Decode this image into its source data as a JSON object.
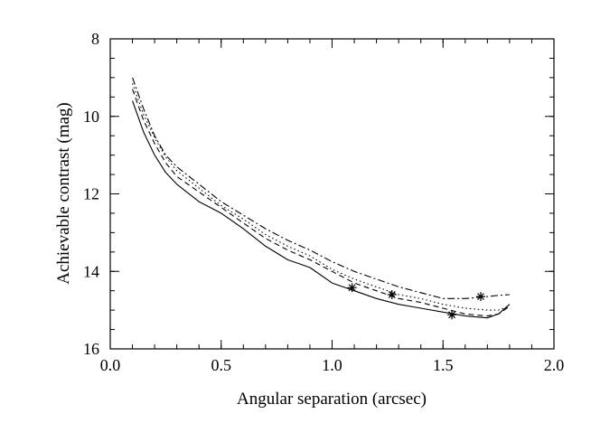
{
  "chart_data": {
    "type": "line",
    "xlabel": "Angular separation (arcsec)",
    "ylabel": "Achievable contrast (mag)",
    "xlim": [
      0.0,
      2.0
    ],
    "ylim": [
      16,
      8
    ],
    "y_inverted": true,
    "x_ticks": [
      0.0,
      0.5,
      1.0,
      1.5,
      2.0
    ],
    "x_tick_labels": [
      "0.0",
      "0.5",
      "1.0",
      "1.5",
      "2.0"
    ],
    "y_ticks": [
      8,
      10,
      12,
      14,
      16
    ],
    "y_tick_labels": [
      "8",
      "10",
      "12",
      "14",
      "16"
    ],
    "grid": false,
    "legend": "none",
    "series": [
      {
        "line_style": "solid",
        "x": [
          0.1,
          0.15,
          0.2,
          0.25,
          0.3,
          0.4,
          0.5,
          0.6,
          0.7,
          0.8,
          0.9,
          1.0,
          1.1,
          1.2,
          1.3,
          1.4,
          1.5,
          1.6,
          1.7,
          1.75,
          1.8
        ],
        "y": [
          9.6,
          10.4,
          11.0,
          11.45,
          11.75,
          12.2,
          12.5,
          12.9,
          13.35,
          13.7,
          13.9,
          14.3,
          14.5,
          14.7,
          14.85,
          14.95,
          15.05,
          15.15,
          15.2,
          15.1,
          14.85
        ],
        "markers": [
          [
            1.09,
            14.42
          ]
        ]
      },
      {
        "line_style": "dashed",
        "x": [
          0.1,
          0.15,
          0.2,
          0.25,
          0.3,
          0.4,
          0.5,
          0.6,
          0.7,
          0.8,
          0.9,
          1.0,
          1.1,
          1.2,
          1.3,
          1.4,
          1.5,
          1.6,
          1.7,
          1.75,
          1.8
        ],
        "y": [
          9.3,
          10.1,
          10.7,
          11.2,
          11.55,
          11.95,
          12.35,
          12.75,
          13.15,
          13.45,
          13.7,
          14.0,
          14.3,
          14.5,
          14.7,
          14.8,
          14.95,
          15.1,
          15.15,
          15.1,
          14.9
        ],
        "markers": [
          [
            1.54,
            15.12
          ]
        ]
      },
      {
        "line_style": "dotted",
        "x": [
          0.1,
          0.15,
          0.2,
          0.25,
          0.3,
          0.4,
          0.5,
          0.6,
          0.7,
          0.8,
          0.9,
          1.0,
          1.1,
          1.2,
          1.3,
          1.4,
          1.5,
          1.6,
          1.7,
          1.75,
          1.8
        ],
        "y": [
          9.15,
          9.95,
          10.55,
          11.05,
          11.4,
          11.85,
          12.3,
          12.65,
          13.05,
          13.35,
          13.6,
          13.95,
          14.2,
          14.4,
          14.6,
          14.7,
          14.85,
          14.95,
          15.0,
          15.0,
          14.9
        ],
        "markers": [
          [
            1.27,
            14.6
          ]
        ]
      },
      {
        "line_style": "dash-dot",
        "x": [
          0.1,
          0.15,
          0.2,
          0.25,
          0.3,
          0.4,
          0.5,
          0.6,
          0.7,
          0.8,
          0.9,
          1.0,
          1.1,
          1.2,
          1.3,
          1.4,
          1.5,
          1.6,
          1.7,
          1.75,
          1.8
        ],
        "y": [
          9.0,
          9.8,
          10.5,
          11.0,
          11.3,
          11.75,
          12.2,
          12.55,
          12.9,
          13.2,
          13.45,
          13.75,
          14.0,
          14.2,
          14.4,
          14.55,
          14.7,
          14.7,
          14.65,
          14.62,
          14.6
        ],
        "markers": [
          [
            1.67,
            14.65
          ]
        ]
      }
    ]
  }
}
